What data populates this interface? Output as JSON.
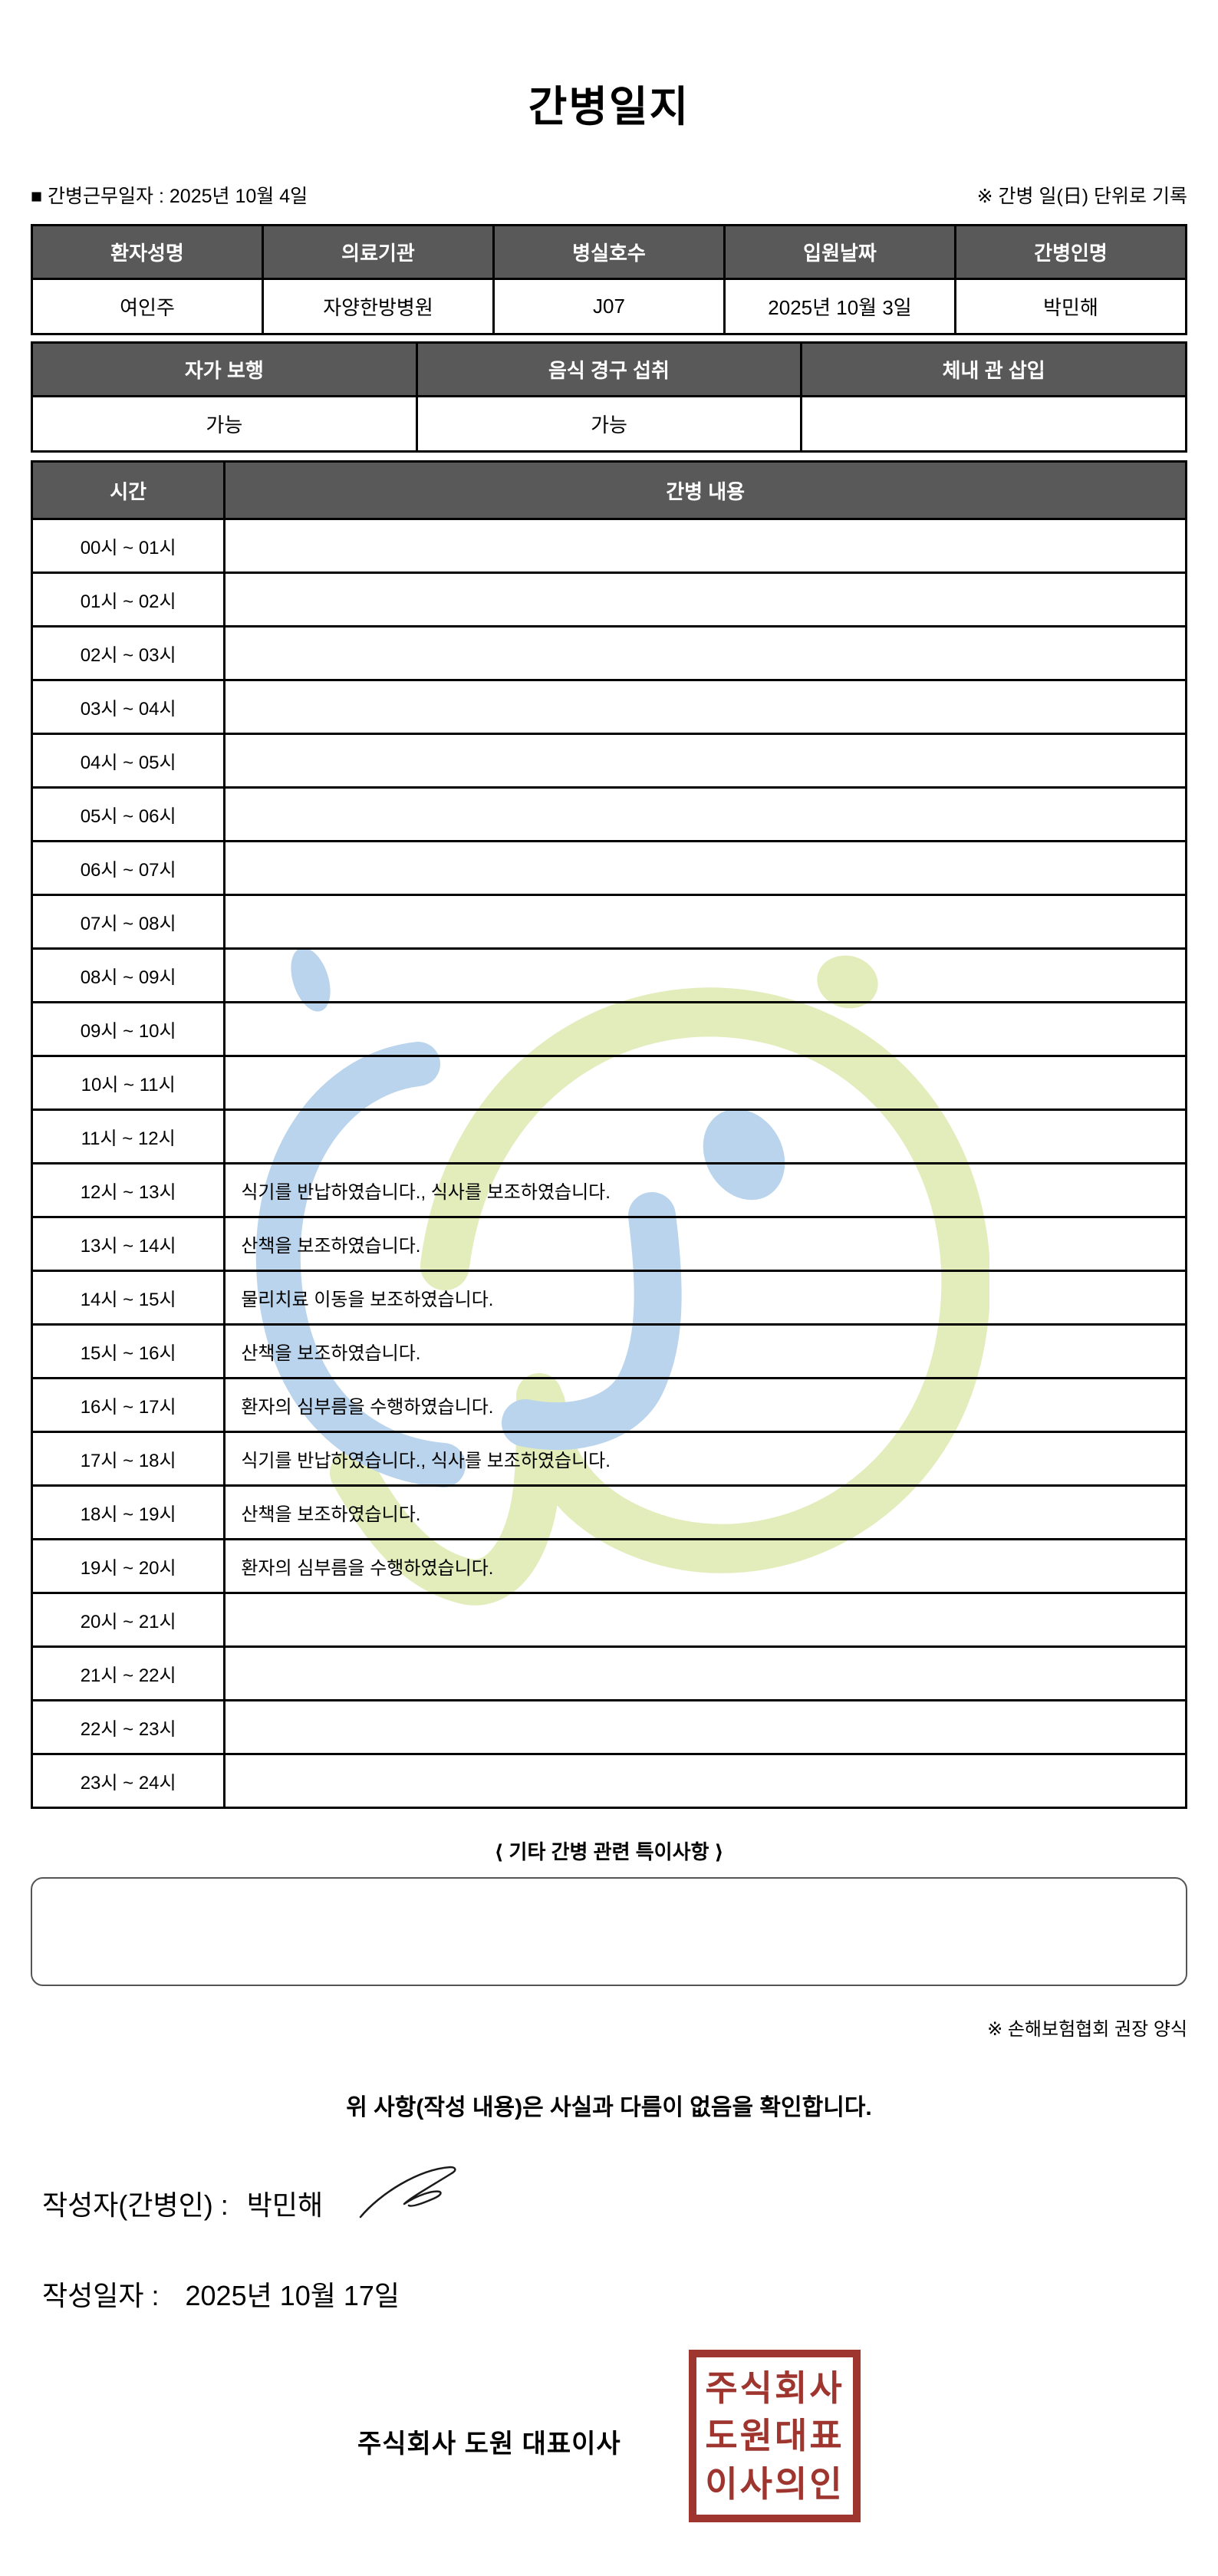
{
  "title": "간병일지",
  "meta": {
    "work_date_label": "■ 간병근무일자 :",
    "work_date_value": "2025년 10월 4일",
    "unit_note": "※ 간병 일(日) 단위로 기록"
  },
  "patient_table": {
    "headers": [
      "환자성명",
      "의료기관",
      "병실호수",
      "입원날짜",
      "간병인명"
    ],
    "values": [
      "여인주",
      "자양한방병원",
      "J07",
      "2025년 10월 3일",
      "박민해"
    ]
  },
  "status_table": {
    "headers": [
      "자가 보행",
      "음식 경구 섭취",
      "체내 관 삽입"
    ],
    "values": [
      "가능",
      "가능",
      ""
    ]
  },
  "schedule_table": {
    "headers": [
      "시간",
      "간병 내용"
    ],
    "rows": [
      {
        "time": "00시 ~ 01시",
        "content": ""
      },
      {
        "time": "01시 ~ 02시",
        "content": ""
      },
      {
        "time": "02시 ~ 03시",
        "content": ""
      },
      {
        "time": "03시 ~ 04시",
        "content": ""
      },
      {
        "time": "04시 ~ 05시",
        "content": ""
      },
      {
        "time": "05시 ~ 06시",
        "content": ""
      },
      {
        "time": "06시 ~ 07시",
        "content": ""
      },
      {
        "time": "07시 ~ 08시",
        "content": ""
      },
      {
        "time": "08시 ~ 09시",
        "content": ""
      },
      {
        "time": "09시 ~ 10시",
        "content": ""
      },
      {
        "time": "10시 ~ 11시",
        "content": ""
      },
      {
        "time": "11시 ~ 12시",
        "content": ""
      },
      {
        "time": "12시 ~ 13시",
        "content": "식기를 반납하였습니다., 식사를 보조하였습니다."
      },
      {
        "time": "13시 ~ 14시",
        "content": "산책을 보조하였습니다."
      },
      {
        "time": "14시 ~ 15시",
        "content": "물리치료 이동을 보조하였습니다."
      },
      {
        "time": "15시 ~ 16시",
        "content": "산책을 보조하였습니다."
      },
      {
        "time": "16시 ~ 17시",
        "content": "환자의 심부름을 수행하였습니다."
      },
      {
        "time": "17시 ~ 18시",
        "content": "식기를 반납하였습니다., 식사를 보조하였습니다."
      },
      {
        "time": "18시 ~ 19시",
        "content": "산책을 보조하였습니다."
      },
      {
        "time": "19시 ~ 20시",
        "content": "환자의 심부름을 수행하였습니다."
      },
      {
        "time": "20시 ~ 21시",
        "content": ""
      },
      {
        "time": "21시 ~ 22시",
        "content": ""
      },
      {
        "time": "22시 ~ 23시",
        "content": ""
      },
      {
        "time": "23시 ~ 24시",
        "content": ""
      }
    ]
  },
  "notes": {
    "title": "⟨ 기타 간병 관련 특이사항 ⟩",
    "content": "",
    "form_note": "※ 손해보험협회 권장 양식"
  },
  "confirmation": {
    "statement": "위 사항(작성 내용)은 사실과 다름이 없음을 확인합니다.",
    "writer_label": "작성자(간병인) :",
    "writer_name": "박민해",
    "date_label": "작성일자 :",
    "date_value": "2025년 10월 17일",
    "company_line": "주식회사 도원   대표이사",
    "stamp_lines": [
      "주식회사",
      "도원대표",
      "이사의인"
    ]
  },
  "colors": {
    "header_bg": "#595959",
    "stamp_red": "#9e352e",
    "watermark_blue": "#b9d4ec",
    "watermark_green": "#e3ecbb"
  }
}
